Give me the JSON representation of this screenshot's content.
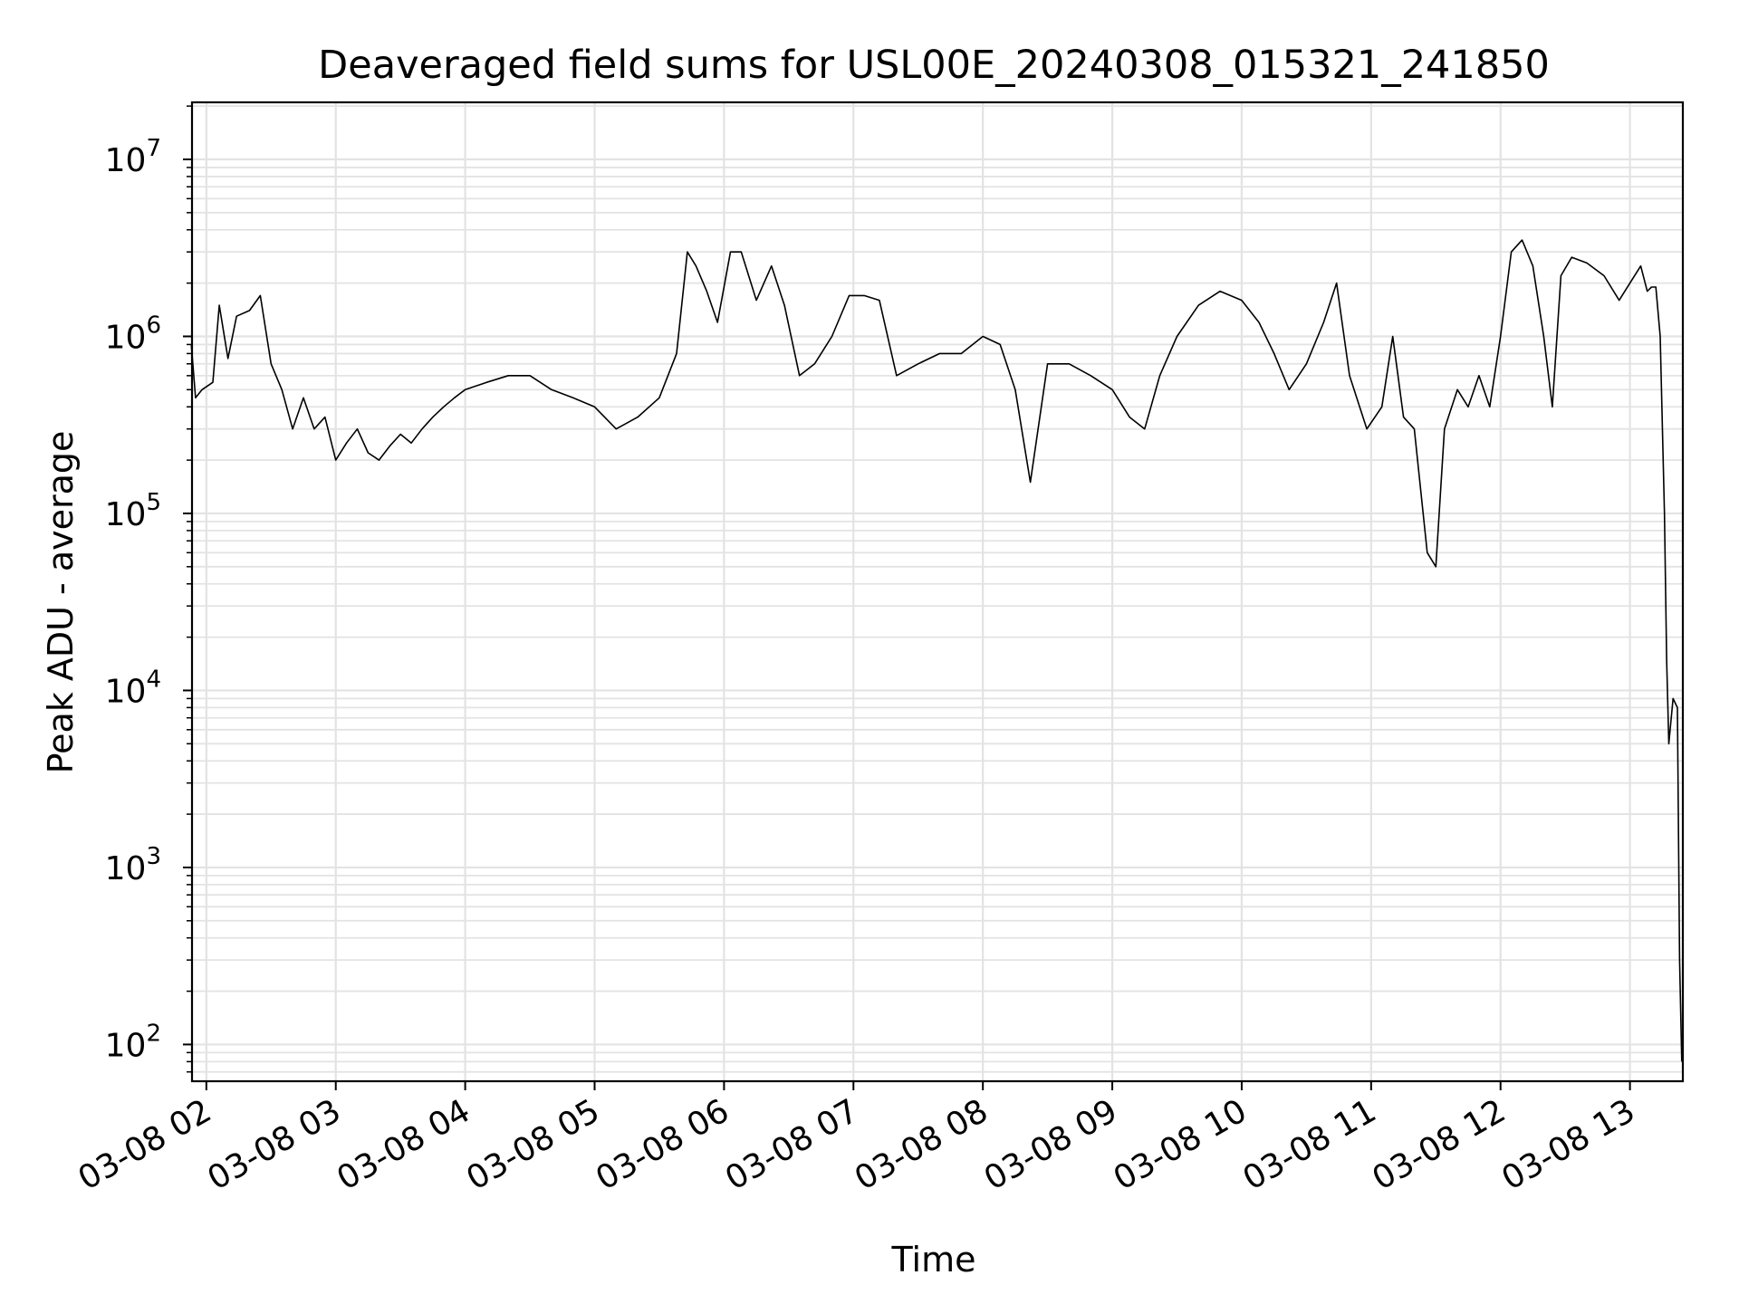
{
  "chart_data": {
    "type": "line",
    "title": "Deaveraged field sums for USL00E_20240308_015321_241850",
    "xlabel": "Time",
    "ylabel": "Peak ADU - average",
    "yscale": "log",
    "ylim": [
      62,
      21000000
    ],
    "xlim": [
      "03-08 01:53:21",
      "03-08 13:24:31"
    ],
    "grid": true,
    "x_ticks": [
      "03-08 02",
      "03-08 03",
      "03-08 04",
      "03-08 05",
      "03-08 06",
      "03-08 07",
      "03-08 08",
      "03-08 09",
      "03-08 10",
      "03-08 11",
      "03-08 12",
      "03-08 13"
    ],
    "y_ticks": [
      {
        "base": "10",
        "exp": "2",
        "value": 100
      },
      {
        "base": "10",
        "exp": "3",
        "value": 1000
      },
      {
        "base": "10",
        "exp": "4",
        "value": 10000
      },
      {
        "base": "10",
        "exp": "5",
        "value": 100000
      },
      {
        "base": "10",
        "exp": "6",
        "value": 1000000
      },
      {
        "base": "10",
        "exp": "7",
        "value": 10000000
      }
    ],
    "series": [
      {
        "color": "#000000",
        "x": [
          "01:53",
          "01:55",
          "01:58",
          "02:03",
          "02:06",
          "02:10",
          "02:14",
          "02:20",
          "02:25",
          "02:30",
          "02:35",
          "02:40",
          "02:45",
          "02:50",
          "02:55",
          "03:00",
          "03:05",
          "03:10",
          "03:15",
          "03:20",
          "03:25",
          "03:30",
          "03:35",
          "03:40",
          "03:45",
          "03:50",
          "03:55",
          "04:00",
          "04:10",
          "04:20",
          "04:30",
          "04:40",
          "04:50",
          "05:00",
          "05:10",
          "05:20",
          "05:30",
          "05:38",
          "05:43",
          "05:47",
          "05:52",
          "05:57",
          "06:03",
          "06:08",
          "06:15",
          "06:22",
          "06:28",
          "06:35",
          "06:42",
          "06:50",
          "06:58",
          "07:05",
          "07:12",
          "07:20",
          "07:30",
          "07:40",
          "07:50",
          "08:00",
          "08:08",
          "08:15",
          "08:22",
          "08:30",
          "08:40",
          "08:50",
          "09:00",
          "09:08",
          "09:15",
          "09:22",
          "09:30",
          "09:40",
          "09:50",
          "10:00",
          "10:08",
          "10:15",
          "10:22",
          "10:30",
          "10:38",
          "10:44",
          "10:50",
          "10:58",
          "11:05",
          "11:10",
          "11:15",
          "11:20",
          "11:26",
          "11:30",
          "11:34",
          "11:40",
          "11:45",
          "11:50",
          "11:55",
          "12:00",
          "12:05",
          "12:10",
          "12:15",
          "12:20",
          "12:24",
          "12:28",
          "12:33",
          "12:40",
          "12:48",
          "12:55",
          "13:00",
          "13:05",
          "13:08",
          "13:10",
          "13:12",
          "13:14",
          "13:16",
          "13:17",
          "13:18",
          "13:20",
          "13:22",
          "13:23",
          "13:24"
        ],
        "y": [
          900000,
          450000,
          500000,
          550000,
          1500000,
          750000,
          1300000,
          1400000,
          1700000,
          700000,
          500000,
          300000,
          450000,
          300000,
          350000,
          200000,
          250000,
          300000,
          220000,
          200000,
          240000,
          280000,
          250000,
          300000,
          350000,
          400000,
          450000,
          500000,
          550000,
          600000,
          600000,
          500000,
          450000,
          400000,
          300000,
          350000,
          450000,
          800000,
          3000000,
          2500000,
          1800000,
          1200000,
          3000000,
          3000000,
          1600000,
          2500000,
          1500000,
          600000,
          700000,
          1000000,
          1700000,
          1700000,
          1600000,
          600000,
          700000,
          800000,
          800000,
          1000000,
          900000,
          500000,
          150000,
          700000,
          700000,
          600000,
          500000,
          350000,
          300000,
          600000,
          1000000,
          1500000,
          1800000,
          1600000,
          1200000,
          800000,
          500000,
          700000,
          1200000,
          2000000,
          600000,
          300000,
          400000,
          1000000,
          350000,
          300000,
          60000,
          50000,
          300000,
          500000,
          400000,
          600000,
          400000,
          1000000,
          3000000,
          3500000,
          2500000,
          1000000,
          400000,
          2200000,
          2800000,
          2600000,
          2200000,
          1600000,
          2000000,
          2500000,
          1800000,
          1900000,
          1900000,
          1000000,
          100000,
          15000,
          5000,
          9000,
          8000,
          300,
          80
        ]
      }
    ]
  }
}
